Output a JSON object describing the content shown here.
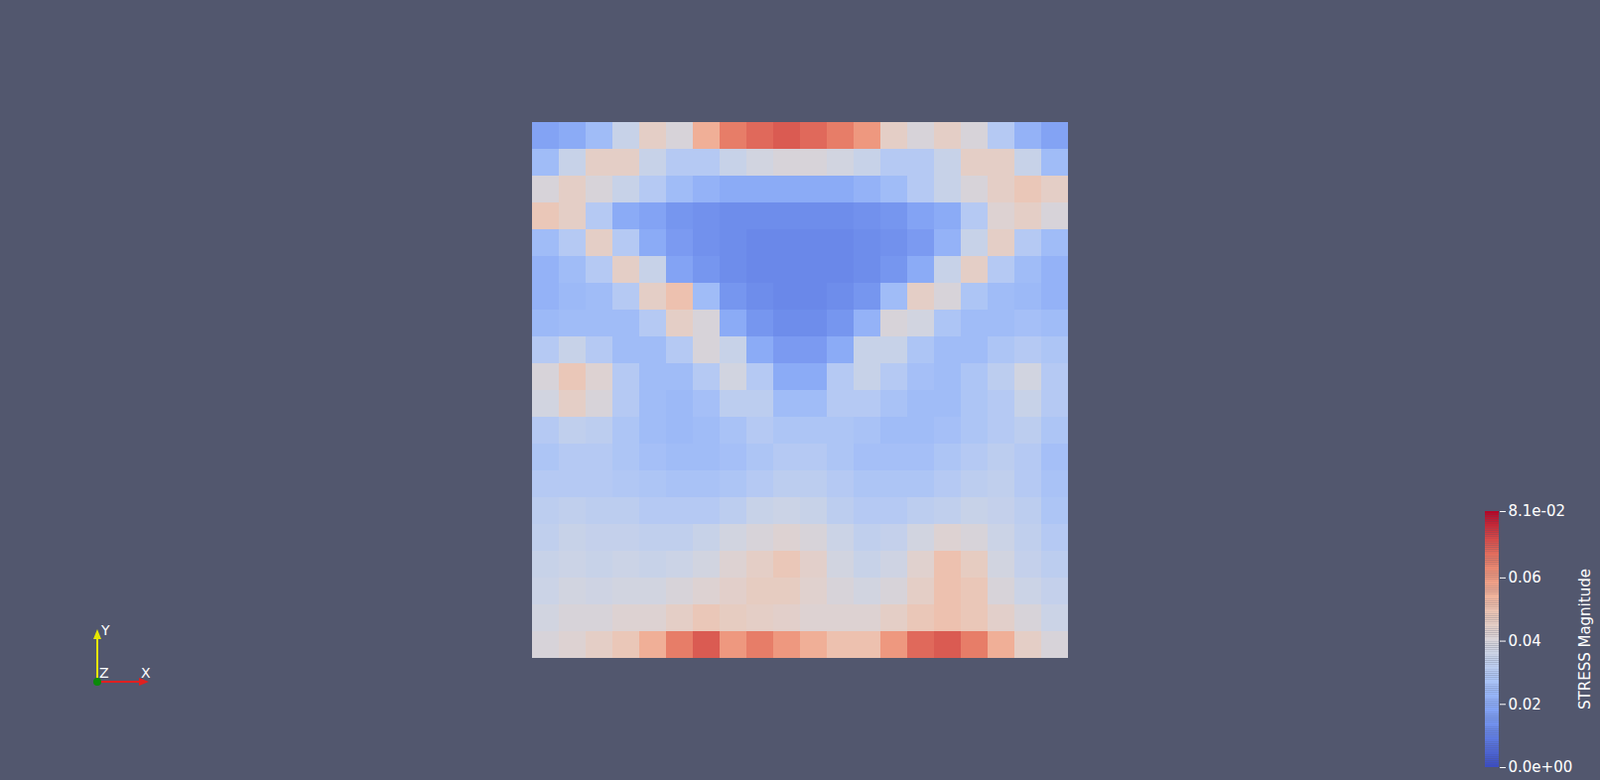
{
  "chart_data": {
    "type": "heatmap",
    "tick_labels": false,
    "cells": [
      [
        0.018,
        0.02,
        0.025,
        0.035,
        0.045,
        0.04,
        0.055,
        0.065,
        0.068,
        0.07,
        0.068,
        0.065,
        0.06,
        0.045,
        0.04,
        0.045,
        0.04,
        0.03,
        0.022,
        0.018
      ],
      [
        0.025,
        0.035,
        0.045,
        0.045,
        0.035,
        0.03,
        0.03,
        0.035,
        0.038,
        0.04,
        0.04,
        0.038,
        0.035,
        0.03,
        0.03,
        0.035,
        0.045,
        0.045,
        0.035,
        0.025
      ],
      [
        0.04,
        0.045,
        0.04,
        0.035,
        0.03,
        0.025,
        0.022,
        0.02,
        0.02,
        0.02,
        0.02,
        0.02,
        0.022,
        0.025,
        0.03,
        0.035,
        0.04,
        0.045,
        0.048,
        0.045
      ],
      [
        0.048,
        0.045,
        0.03,
        0.02,
        0.018,
        0.015,
        0.014,
        0.013,
        0.013,
        0.013,
        0.013,
        0.013,
        0.014,
        0.015,
        0.018,
        0.02,
        0.03,
        0.042,
        0.045,
        0.04
      ],
      [
        0.025,
        0.03,
        0.045,
        0.03,
        0.02,
        0.016,
        0.014,
        0.013,
        0.012,
        0.012,
        0.012,
        0.012,
        0.013,
        0.014,
        0.016,
        0.022,
        0.035,
        0.045,
        0.03,
        0.025
      ],
      [
        0.022,
        0.025,
        0.03,
        0.045,
        0.035,
        0.018,
        0.015,
        0.013,
        0.012,
        0.012,
        0.012,
        0.012,
        0.013,
        0.015,
        0.02,
        0.035,
        0.045,
        0.03,
        0.025,
        0.022
      ],
      [
        0.022,
        0.024,
        0.025,
        0.03,
        0.045,
        0.05,
        0.025,
        0.015,
        0.013,
        0.012,
        0.012,
        0.013,
        0.015,
        0.025,
        0.045,
        0.04,
        0.028,
        0.025,
        0.024,
        0.022
      ],
      [
        0.024,
        0.025,
        0.025,
        0.025,
        0.03,
        0.045,
        0.04,
        0.02,
        0.015,
        0.013,
        0.013,
        0.015,
        0.022,
        0.04,
        0.038,
        0.028,
        0.025,
        0.025,
        0.026,
        0.025
      ],
      [
        0.03,
        0.035,
        0.03,
        0.025,
        0.025,
        0.03,
        0.04,
        0.035,
        0.02,
        0.016,
        0.016,
        0.02,
        0.035,
        0.035,
        0.028,
        0.025,
        0.025,
        0.028,
        0.03,
        0.028
      ],
      [
        0.04,
        0.048,
        0.042,
        0.03,
        0.025,
        0.025,
        0.03,
        0.038,
        0.03,
        0.02,
        0.02,
        0.03,
        0.035,
        0.03,
        0.026,
        0.025,
        0.028,
        0.032,
        0.038,
        0.03
      ],
      [
        0.038,
        0.045,
        0.04,
        0.03,
        0.025,
        0.024,
        0.026,
        0.032,
        0.032,
        0.025,
        0.025,
        0.03,
        0.03,
        0.027,
        0.025,
        0.025,
        0.028,
        0.03,
        0.035,
        0.03
      ],
      [
        0.03,
        0.033,
        0.032,
        0.028,
        0.025,
        0.024,
        0.025,
        0.027,
        0.03,
        0.028,
        0.028,
        0.028,
        0.027,
        0.025,
        0.025,
        0.026,
        0.028,
        0.03,
        0.032,
        0.028
      ],
      [
        0.028,
        0.03,
        0.03,
        0.028,
        0.026,
        0.025,
        0.025,
        0.026,
        0.028,
        0.03,
        0.03,
        0.028,
        0.026,
        0.026,
        0.026,
        0.028,
        0.03,
        0.032,
        0.03,
        0.026
      ],
      [
        0.03,
        0.03,
        0.03,
        0.029,
        0.028,
        0.027,
        0.027,
        0.028,
        0.03,
        0.032,
        0.032,
        0.03,
        0.028,
        0.028,
        0.028,
        0.03,
        0.032,
        0.033,
        0.03,
        0.027
      ],
      [
        0.032,
        0.033,
        0.032,
        0.032,
        0.03,
        0.03,
        0.03,
        0.032,
        0.035,
        0.036,
        0.035,
        0.032,
        0.03,
        0.03,
        0.032,
        0.033,
        0.035,
        0.034,
        0.032,
        0.028
      ],
      [
        0.033,
        0.035,
        0.034,
        0.034,
        0.033,
        0.033,
        0.035,
        0.038,
        0.04,
        0.042,
        0.04,
        0.036,
        0.033,
        0.034,
        0.038,
        0.042,
        0.04,
        0.036,
        0.033,
        0.03
      ],
      [
        0.035,
        0.036,
        0.035,
        0.036,
        0.035,
        0.036,
        0.038,
        0.042,
        0.045,
        0.048,
        0.044,
        0.038,
        0.035,
        0.037,
        0.043,
        0.05,
        0.046,
        0.038,
        0.034,
        0.032
      ],
      [
        0.036,
        0.038,
        0.037,
        0.038,
        0.038,
        0.04,
        0.042,
        0.044,
        0.046,
        0.046,
        0.043,
        0.04,
        0.038,
        0.04,
        0.045,
        0.05,
        0.048,
        0.04,
        0.036,
        0.034
      ],
      [
        0.038,
        0.04,
        0.04,
        0.042,
        0.042,
        0.045,
        0.048,
        0.046,
        0.045,
        0.044,
        0.042,
        0.042,
        0.042,
        0.045,
        0.048,
        0.05,
        0.048,
        0.044,
        0.04,
        0.036
      ],
      [
        0.04,
        0.042,
        0.045,
        0.048,
        0.055,
        0.065,
        0.07,
        0.06,
        0.065,
        0.06,
        0.055,
        0.05,
        0.05,
        0.06,
        0.068,
        0.07,
        0.065,
        0.055,
        0.045,
        0.04
      ]
    ],
    "colorbar": {
      "label": "STRESS Magnitude",
      "range": [
        0,
        0.081
      ],
      "ticks": [
        {
          "value": 0,
          "label": "0.0e+00"
        },
        0.02,
        0.04,
        0.06,
        {
          "value": 0.081,
          "label": "8.1e-02"
        }
      ]
    },
    "axes_triad": {
      "x": "X",
      "y": "Y",
      "z": "Z"
    }
  }
}
